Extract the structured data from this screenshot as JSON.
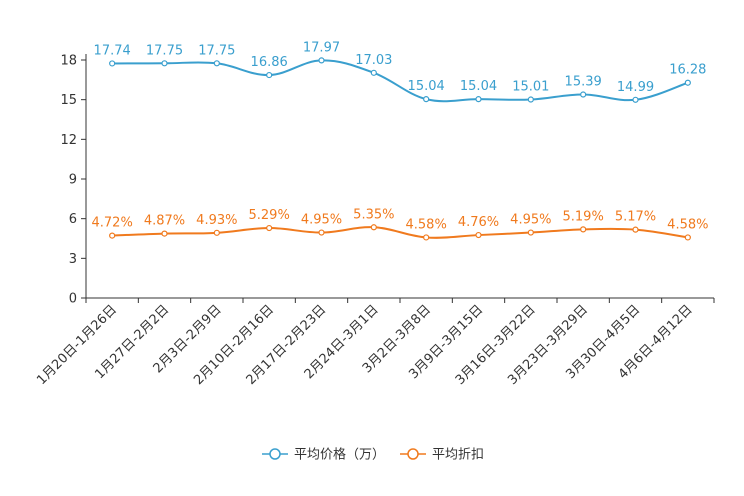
{
  "chart_data": {
    "type": "line",
    "title": "",
    "xlabel": "",
    "ylabel": "",
    "ylim": [
      0,
      18
    ],
    "yticks": [
      0,
      3,
      6,
      9,
      12,
      15,
      18
    ],
    "grid": false,
    "legend_position": "bottom-center",
    "categories": [
      "1月20日-1月26日",
      "1月27日-2月2日",
      "2月3日-2月9日",
      "2月10日-2月16日",
      "2月17日-2月23日",
      "2月24日-3月1日",
      "3月2日-3月8日",
      "3月9日-3月15日",
      "3月16日-3月22日",
      "3月23日-3月29日",
      "3月30日-4月5日",
      "4月6日-4月12日"
    ],
    "series": [
      {
        "name": "平均价格（万）",
        "color": "#3a9fce",
        "values": [
          17.74,
          17.75,
          17.75,
          16.86,
          17.97,
          17.03,
          15.04,
          15.04,
          15.01,
          15.39,
          14.99,
          16.28
        ],
        "labels": [
          "17.74",
          "17.75",
          "17.75",
          "16.86",
          "17.97",
          "17.03",
          "15.04",
          "15.04",
          "15.01",
          "15.39",
          "14.99",
          "16.28"
        ]
      },
      {
        "name": "平均折扣",
        "color": "#f07a1e",
        "values": [
          4.72,
          4.87,
          4.93,
          5.29,
          4.95,
          5.35,
          4.58,
          4.76,
          4.95,
          5.19,
          5.17,
          4.58
        ],
        "labels": [
          "4.72%",
          "4.87%",
          "4.93%",
          "5.29%",
          "4.95%",
          "5.35%",
          "4.58%",
          "4.76%",
          "4.95%",
          "5.19%",
          "5.17%",
          "4.58%"
        ]
      }
    ]
  }
}
